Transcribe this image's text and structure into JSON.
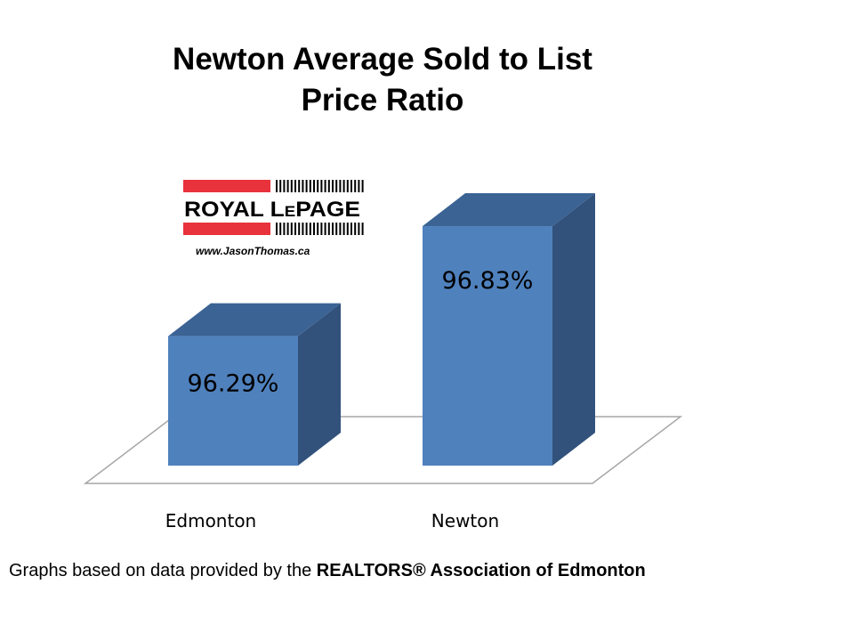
{
  "title": [
    "Newton Average Sold to List",
    "Price Ratio"
  ],
  "logo": {
    "brand": "ROYAL LEPAGE",
    "website": "www.JasonThomas.ca",
    "colors": {
      "red": "#e8323c",
      "black": "#000000"
    }
  },
  "footer": {
    "prefix": "Graphs based on data provided by the ",
    "source": "REALTORS® Association of Edmonton"
  },
  "chart_data": {
    "type": "bar",
    "style": "3d-column",
    "categories": [
      "Edmonton",
      "Newton"
    ],
    "values": [
      96.29,
      96.83
    ],
    "data_labels": [
      "96.29%",
      "96.83%"
    ],
    "title": "Newton Average Sold to List Price Ratio",
    "xlabel": "",
    "ylabel": "",
    "grid": false,
    "colors": {
      "front": "#4f81bd",
      "top": "#3b6394",
      "side": "#32527c"
    }
  }
}
